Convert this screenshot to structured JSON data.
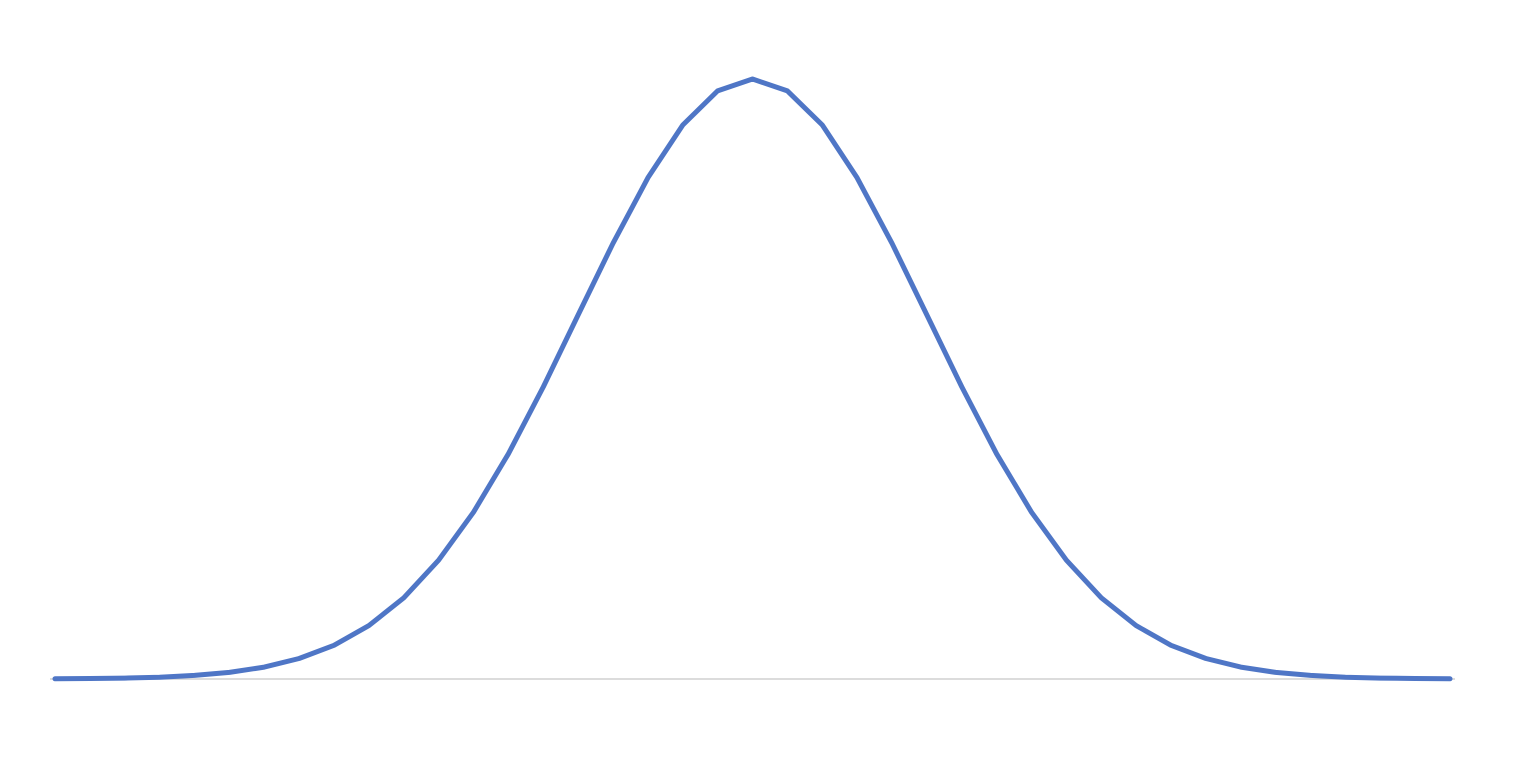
{
  "chart_data": {
    "type": "line",
    "title": "",
    "xlabel": "",
    "ylabel": "",
    "xlim": [
      -4,
      4
    ],
    "ylim": [
      0,
      0.4
    ],
    "grid": false,
    "legend": "none",
    "line_color": "#4f76c6",
    "axis_color": "#d0d0d0",
    "series": [
      {
        "x": [
          -4.0,
          -3.8,
          -3.6,
          -3.4,
          -3.2,
          -3.0,
          -2.8,
          -2.6,
          -2.4,
          -2.2,
          -2.0,
          -1.8,
          -1.6,
          -1.4,
          -1.2,
          -1.0,
          -0.8,
          -0.6,
          -0.4,
          -0.2,
          0.0,
          0.2,
          0.4,
          0.6,
          0.8,
          1.0,
          1.2,
          1.4,
          1.6,
          1.8,
          2.0,
          2.2,
          2.4,
          2.6,
          2.8,
          3.0,
          3.2,
          3.4,
          3.6,
          3.8,
          4.0
        ],
        "values": [
          0.0001,
          0.0003,
          0.0006,
          0.0012,
          0.0024,
          0.0044,
          0.0079,
          0.0136,
          0.0224,
          0.0355,
          0.054,
          0.079,
          0.1109,
          0.1497,
          0.1942,
          0.242,
          0.2897,
          0.3332,
          0.3683,
          0.391,
          0.3989,
          0.391,
          0.3683,
          0.3332,
          0.2897,
          0.242,
          0.1942,
          0.1497,
          0.1109,
          0.079,
          0.054,
          0.0355,
          0.0224,
          0.0136,
          0.0079,
          0.0044,
          0.0024,
          0.0012,
          0.0006,
          0.0003,
          0.0001
        ]
      }
    ]
  }
}
